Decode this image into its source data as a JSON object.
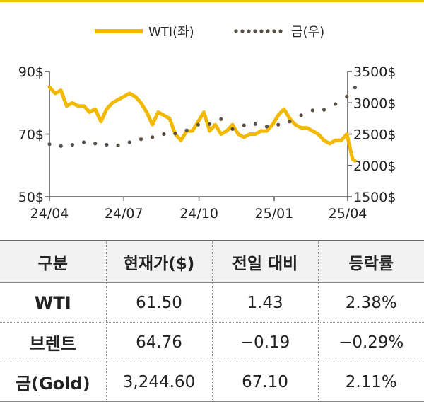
{
  "chart_data": {
    "type": "line",
    "legend": {
      "position": "top-center",
      "items": [
        "WTI(좌)",
        "금(우)"
      ]
    },
    "x_ticks": [
      "24/04",
      "24/07",
      "24/10",
      "25/01",
      "25/04"
    ],
    "y_left": {
      "ticks": [
        "50$",
        "70$",
        "90$"
      ],
      "range": [
        50,
        90
      ]
    },
    "y_right": {
      "ticks": [
        "1500$",
        "2000$",
        "2500$",
        "3000$",
        "3500$"
      ],
      "range": [
        1500,
        3500
      ]
    },
    "grid": false,
    "series": [
      {
        "name": "WTI(좌)",
        "axis": "left",
        "color": "#f3b800",
        "style": "solid",
        "x": [
          "2024-04-01",
          "2024-04-08",
          "2024-04-15",
          "2024-04-22",
          "2024-04-29",
          "2024-05-06",
          "2024-05-13",
          "2024-05-20",
          "2024-05-27",
          "2024-06-03",
          "2024-06-10",
          "2024-06-17",
          "2024-06-24",
          "2024-07-01",
          "2024-07-08",
          "2024-07-15",
          "2024-07-22",
          "2024-07-29",
          "2024-08-05",
          "2024-08-12",
          "2024-08-19",
          "2024-08-26",
          "2024-09-02",
          "2024-09-09",
          "2024-09-16",
          "2024-09-23",
          "2024-09-30",
          "2024-10-07",
          "2024-10-14",
          "2024-10-21",
          "2024-10-28",
          "2024-11-04",
          "2024-11-11",
          "2024-11-18",
          "2024-11-25",
          "2024-12-02",
          "2024-12-09",
          "2024-12-16",
          "2024-12-23",
          "2024-12-30",
          "2025-01-06",
          "2025-01-13",
          "2025-01-20",
          "2025-01-27",
          "2025-02-03",
          "2025-02-10",
          "2025-02-17",
          "2025-02-24",
          "2025-03-03",
          "2025-03-10",
          "2025-03-17",
          "2025-03-24",
          "2025-03-31",
          "2025-04-07",
          "2025-04-10"
        ],
        "values": [
          85,
          83,
          84,
          79,
          80,
          79,
          79,
          77,
          78,
          74,
          78,
          80,
          81,
          82,
          83,
          82,
          80,
          77,
          73,
          77,
          76,
          75,
          70,
          68,
          71,
          71,
          74,
          77,
          71,
          73,
          70,
          71,
          73,
          70,
          69,
          70,
          70,
          71,
          71,
          73,
          76,
          78,
          75,
          73,
          72,
          72,
          71,
          70,
          68,
          67,
          68,
          68,
          70,
          62,
          61.5
        ]
      },
      {
        "name": "금(우)",
        "axis": "right",
        "color": "#5a4f44",
        "style": "dotted",
        "x": [
          "2024-04-01",
          "2024-04-15",
          "2024-04-29",
          "2024-05-13",
          "2024-05-27",
          "2024-06-10",
          "2024-06-24",
          "2024-07-08",
          "2024-07-22",
          "2024-08-05",
          "2024-08-19",
          "2024-09-02",
          "2024-09-16",
          "2024-09-30",
          "2024-10-14",
          "2024-10-28",
          "2024-11-11",
          "2024-11-25",
          "2024-12-09",
          "2024-12-23",
          "2025-01-06",
          "2025-01-20",
          "2025-02-03",
          "2025-02-17",
          "2025-03-03",
          "2025-03-17",
          "2025-03-31",
          "2025-04-10"
        ],
        "values": [
          2340,
          2310,
          2330,
          2370,
          2350,
          2330,
          2320,
          2370,
          2420,
          2450,
          2500,
          2510,
          2560,
          2650,
          2660,
          2740,
          2580,
          2640,
          2660,
          2620,
          2650,
          2700,
          2800,
          2880,
          2890,
          2980,
          3100,
          3244.6
        ]
      }
    ]
  },
  "table": {
    "headers": [
      "구분",
      "현재가($)",
      "전일 대비",
      "등락률"
    ],
    "rows": [
      [
        "WTI",
        "61.50",
        "1.43",
        "2.38%"
      ],
      [
        "브렌트",
        "64.76",
        "−0.19",
        "−0.29%"
      ],
      [
        "금(Gold)",
        "3,244.60",
        "67.10",
        "2.11%"
      ]
    ]
  }
}
